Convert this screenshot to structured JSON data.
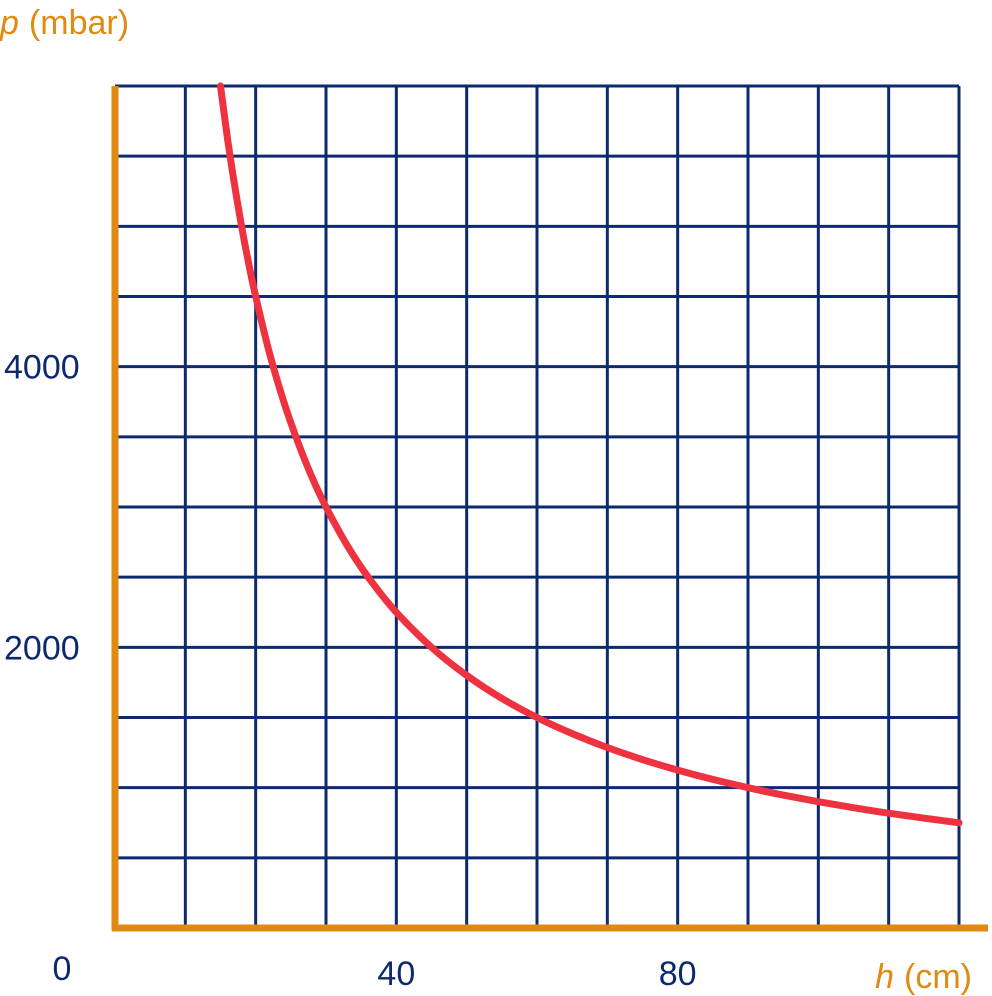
{
  "colors": {
    "grid": "#0d2a6e",
    "axis": "#e08a12",
    "curve": "#ee3340",
    "tick_text": "#0d2a6e",
    "axis_label_text": "#e08a12"
  },
  "chart_data": {
    "type": "line",
    "y_axis_label": {
      "symbol": "p",
      "unit": "(mbar)"
    },
    "x_axis_label": {
      "symbol": "h",
      "unit": "(cm)"
    },
    "origin_label": "0",
    "x_ticks": [
      {
        "value": 40,
        "label": "40"
      },
      {
        "value": 80,
        "label": "80"
      }
    ],
    "y_ticks": [
      {
        "value": 2000,
        "label": "2000"
      },
      {
        "value": 4000,
        "label": "4000"
      }
    ],
    "xlim": [
      0,
      120
    ],
    "ylim": [
      0,
      6000
    ],
    "x_grid_step": 10,
    "y_grid_step": 500,
    "grid": true,
    "series": [
      {
        "x": [
          15,
          16,
          17,
          18,
          19,
          20,
          22,
          24,
          26,
          28,
          30,
          33,
          36,
          40,
          45,
          50,
          55,
          60,
          65,
          70,
          75,
          80,
          85,
          90,
          95,
          100,
          105,
          110,
          115,
          120
        ],
        "y": [
          6000,
          5625,
          5294,
          5000,
          4737,
          4500,
          4091,
          3750,
          3462,
          3214,
          3000,
          2727,
          2500,
          2250,
          2000,
          1800,
          1636,
          1500,
          1385,
          1286,
          1200,
          1125,
          1059,
          1000,
          947,
          900,
          857,
          818,
          783,
          750
        ]
      }
    ]
  }
}
